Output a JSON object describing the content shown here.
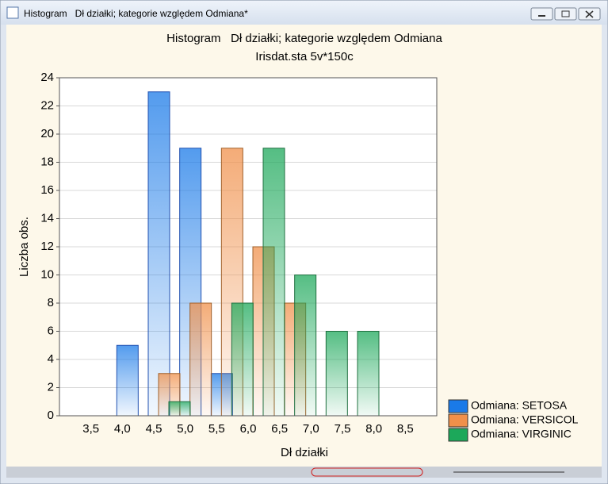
{
  "window": {
    "title": "Histogram   Dł działki; kategorie względem Odmiana*"
  },
  "chart_data": {
    "type": "bar",
    "title": "Histogram   Dł działki; kategorie względem Odmiana",
    "subtitle": "Irisdat.sta 5v*150c",
    "x_label": "Dł działki",
    "y_label": "Liczba obs.",
    "categories": [
      "3,5",
      "4,0",
      "4,5",
      "5,0",
      "5,5",
      "6,0",
      "6,5",
      "7,0",
      "7,5",
      "8,0",
      "8,5"
    ],
    "series": [
      {
        "name": "Odmiana: SETOSA",
        "color": "#1a7ae8",
        "values": [
          0,
          5,
          23,
          19,
          3,
          0,
          0,
          0,
          0,
          0,
          0
        ]
      },
      {
        "name": "Odmiana: VERSICOL",
        "color": "#f0904a",
        "values": [
          0,
          0,
          3,
          8,
          19,
          12,
          8,
          0,
          0,
          0,
          0
        ]
      },
      {
        "name": "Odmiana: VIRGINIC",
        "color": "#1ca85a",
        "values": [
          0,
          0,
          1,
          0,
          8,
          19,
          10,
          6,
          6,
          0,
          0
        ]
      }
    ],
    "ylim": [
      0,
      24
    ],
    "yticks": [
      0,
      2,
      4,
      6,
      8,
      10,
      12,
      14,
      16,
      18,
      20,
      22,
      24
    ],
    "grid": true,
    "legend": "bottom-right"
  }
}
